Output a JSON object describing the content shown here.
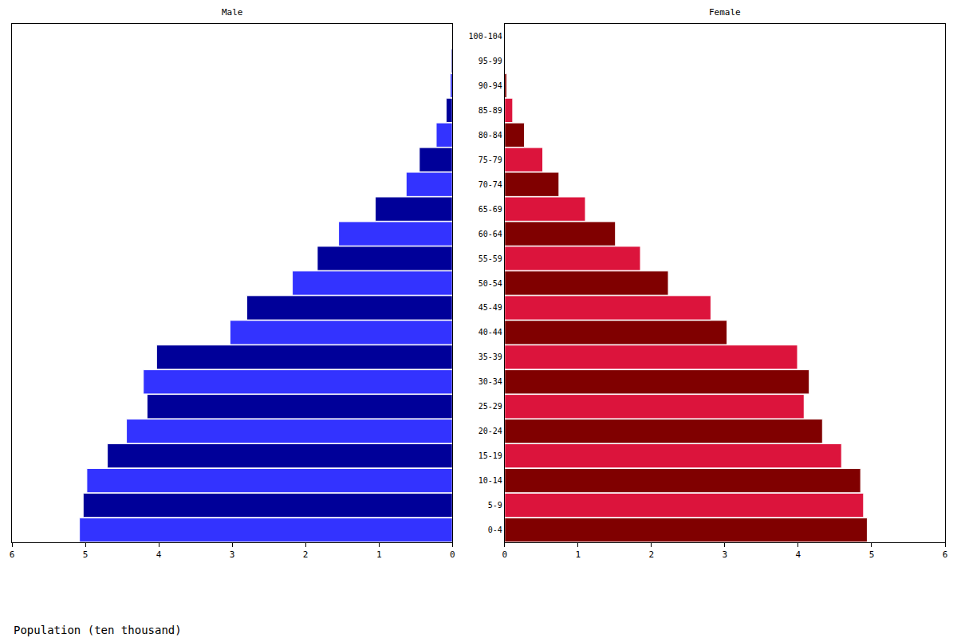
{
  "chart_data": {
    "type": "bar",
    "orientation": "horizontal",
    "xlabel": "Population (ten thousand)",
    "categories": [
      "0-4",
      "5-9",
      "10-14",
      "15-19",
      "20-24",
      "25-29",
      "30-34",
      "35-39",
      "40-44",
      "45-49",
      "50-54",
      "55-59",
      "60-64",
      "65-69",
      "70-74",
      "75-79",
      "80-84",
      "85-89",
      "90-94",
      "95-99",
      "100-104"
    ],
    "xlim": [
      0,
      6
    ],
    "xticks": [
      0,
      1,
      2,
      3,
      4,
      5,
      6
    ],
    "grid": false,
    "series": [
      {
        "name": "Male",
        "colors": [
          "#3333ff",
          "#000099",
          "#3333ff",
          "#000099",
          "#3333ff",
          "#000099",
          "#3333ff",
          "#000099",
          "#3333ff",
          "#000099",
          "#3333ff",
          "#000099",
          "#3333ff",
          "#000099",
          "#3333ff",
          "#000099",
          "#3333ff",
          "#000099",
          "#3333ff",
          "#000099",
          "#3333ff"
        ],
        "values": [
          5.08,
          5.03,
          4.98,
          4.7,
          4.44,
          4.16,
          4.21,
          4.03,
          3.03,
          2.8,
          2.18,
          1.84,
          1.55,
          1.05,
          0.63,
          0.45,
          0.22,
          0.085,
          0.03,
          0.015,
          0.01
        ]
      },
      {
        "name": "Female",
        "colors": [
          "#800000",
          "#dc143c",
          "#800000",
          "#dc143c",
          "#800000",
          "#dc143c",
          "#800000",
          "#dc143c",
          "#800000",
          "#dc143c",
          "#800000",
          "#dc143c",
          "#800000",
          "#dc143c",
          "#800000",
          "#dc143c",
          "#800000",
          "#dc143c",
          "#800000",
          "#dc143c",
          "#800000"
        ],
        "values": [
          4.94,
          4.89,
          4.85,
          4.59,
          4.33,
          4.08,
          4.15,
          3.99,
          3.03,
          2.81,
          2.23,
          1.85,
          1.51,
          1.1,
          0.74,
          0.52,
          0.27,
          0.11,
          0.03,
          0.01,
          0.01
        ]
      }
    ]
  }
}
